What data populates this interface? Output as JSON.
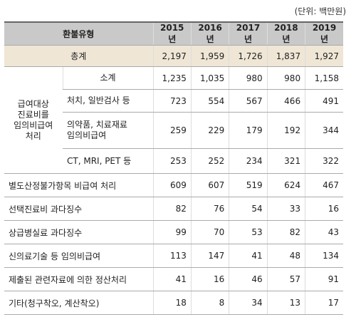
{
  "unit": "(단위: 백만원)",
  "table": {
    "header": [
      "환불유형",
      "2015년",
      "2016년",
      "2017년",
      "2018년",
      "2019년"
    ],
    "total": {
      "label": "총계",
      "values": [
        "2,197",
        "1,959",
        "1,726",
        "1,837",
        "1,927"
      ]
    },
    "group": {
      "label_lines": [
        "급여대상",
        "진료비를",
        "임의비급여",
        "처리"
      ],
      "rows": [
        {
          "label_lines": [
            "소계"
          ],
          "values": [
            "1,235",
            "1,035",
            "980",
            "980",
            "1,158"
          ]
        },
        {
          "label_lines": [
            "처치, 일반검사 등"
          ],
          "values": [
            "723",
            "554",
            "567",
            "466",
            "491"
          ]
        },
        {
          "label_lines": [
            "의약품, 치료재료",
            "임의비급여"
          ],
          "values": [
            "259",
            "229",
            "179",
            "192",
            "344"
          ]
        },
        {
          "label_lines": [
            "CT, MRI, PET 등"
          ],
          "values": [
            "253",
            "252",
            "234",
            "321",
            "322"
          ]
        }
      ]
    },
    "rows": [
      {
        "label": "별도산정불가항목 비급여 처리",
        "values": [
          "609",
          "607",
          "519",
          "624",
          "467"
        ]
      },
      {
        "label": "선택진료비 과다징수",
        "values": [
          "82",
          "76",
          "54",
          "33",
          "16"
        ]
      },
      {
        "label": "상급병실료 과다징수",
        "values": [
          "99",
          "70",
          "53",
          "82",
          "43"
        ]
      },
      {
        "label": "신의료기술 등 임의비급여",
        "values": [
          "113",
          "147",
          "41",
          "48",
          "134"
        ]
      },
      {
        "label": "제출된 관련자료에 의한 정산처리",
        "values": [
          "41",
          "16",
          "46",
          "57",
          "91"
        ]
      },
      {
        "label": "기타(청구착오, 계산착오)",
        "values": [
          "18",
          "8",
          "34",
          "13",
          "17"
        ]
      }
    ]
  }
}
